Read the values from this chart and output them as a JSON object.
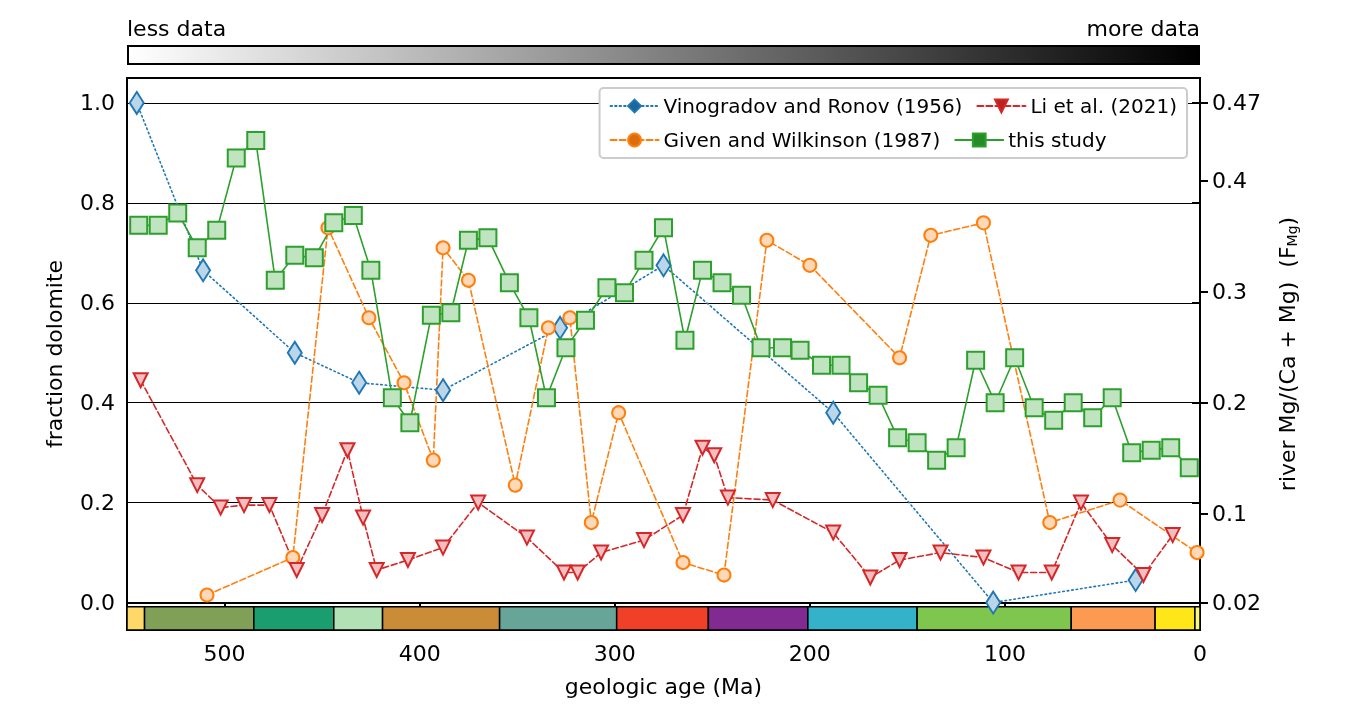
{
  "chart_data": {
    "type": "line",
    "xlabel": "geologic age (Ma)",
    "ylabel": "fraction dolomite",
    "y2label": "river Mg/(Ca + Mg)  (F$_{Mg}$)",
    "xlim": [
      550,
      0
    ],
    "xticks": [
      500,
      400,
      300,
      200,
      100,
      0
    ],
    "ylim": [
      -0.055,
      1.05
    ],
    "yticks": [
      {
        "value": 0,
        "label": "0.0"
      },
      0.2,
      0.4,
      0.6,
      0.8,
      {
        "value": 1,
        "label": "1.0"
      }
    ],
    "y2lim": [
      -0.005,
      0.4925
    ],
    "y2ticks": [
      0.02,
      0.1,
      0.2,
      0.3,
      0.4,
      0.47
    ],
    "clim": [
      0,
      1
    ],
    "cticks": [
      {
        "value": 0,
        "label": "less data"
      },
      {
        "value": 1,
        "label": "more data"
      }
    ],
    "grid": "y",
    "legend": "top right",
    "series": [
      {
        "name": "Vinogradov and Ronov (1956)",
        "color": "#1f77b4",
        "marker": "diamond",
        "line_style": "dotted",
        "x": [
          545,
          511,
          464,
          431,
          388,
          328,
          275,
          188,
          106,
          33
        ],
        "values": [
          1.0,
          0.665,
          0.5,
          0.44,
          0.425,
          0.55,
          0.675,
          0.38,
          0.0,
          0.045
        ]
      },
      {
        "name": "Given and Wilkinson (1987)",
        "color": "#ff7f0e",
        "marker": "circle",
        "line_style": "dashed",
        "x": [
          509,
          465,
          447,
          426,
          408,
          393,
          388,
          375,
          351,
          334,
          323,
          312,
          298,
          265,
          244,
          222,
          200,
          154,
          138,
          111,
          77,
          41,
          1.5
        ],
        "values": [
          0.015,
          0.09,
          0.75,
          0.57,
          0.44,
          0.285,
          0.71,
          0.645,
          0.235,
          0.55,
          0.57,
          0.16,
          0.38,
          0.08,
          0.055,
          0.725,
          0.675,
          0.49,
          0.735,
          0.76,
          0.16,
          0.205,
          0.1
        ]
      },
      {
        "name": "Li et al. (2021)",
        "color": "#d62728",
        "marker": "triangle",
        "line_style": "dashed",
        "x": [
          543,
          514,
          502,
          490,
          477,
          463,
          450,
          437,
          429,
          422,
          406,
          388,
          370,
          345,
          326,
          319,
          307,
          285,
          265,
          255,
          249,
          242,
          219,
          188,
          169,
          154,
          133,
          111,
          93,
          76,
          61,
          45,
          29,
          14
        ],
        "values": [
          0.445,
          0.235,
          0.19,
          0.195,
          0.195,
          0.065,
          0.175,
          0.305,
          0.17,
          0.065,
          0.085,
          0.11,
          0.2,
          0.13,
          0.06,
          0.06,
          0.1,
          0.125,
          0.175,
          0.31,
          0.295,
          0.21,
          0.205,
          0.14,
          0.05,
          0.085,
          0.1,
          0.09,
          0.06,
          0.06,
          0.2,
          0.115,
          0.055,
          0.135
        ]
      },
      {
        "name": "this study",
        "color": "#2ca02c",
        "marker": "square",
        "line_style": "solid",
        "x": [
          544,
          534,
          524,
          514,
          504,
          494,
          484,
          474,
          464,
          454,
          444,
          434,
          425,
          414,
          405,
          394,
          384,
          375,
          365,
          354,
          344,
          335,
          325,
          315,
          304,
          295,
          285,
          275,
          264,
          255,
          245,
          235,
          225,
          214,
          205,
          194,
          184,
          175,
          165,
          155,
          145,
          135,
          125,
          115,
          105,
          95,
          85,
          75,
          65,
          55,
          45,
          35,
          25,
          15,
          5.5
        ],
        "values": [
          0.755,
          0.755,
          0.78,
          0.71,
          0.745,
          0.89,
          0.925,
          0.645,
          0.695,
          0.69,
          0.76,
          0.775,
          0.665,
          0.41,
          0.36,
          0.575,
          0.58,
          0.725,
          0.73,
          0.64,
          0.57,
          0.41,
          0.51,
          0.565,
          0.63,
          0.62,
          0.685,
          0.75,
          0.525,
          0.665,
          0.64,
          0.615,
          0.51,
          0.51,
          0.505,
          0.475,
          0.475,
          0.44,
          0.415,
          0.33,
          0.32,
          0.285,
          0.31,
          0.485,
          0.4,
          0.49,
          0.39,
          0.365,
          0.4,
          0.37,
          0.41,
          0.3,
          0.305,
          0.31,
          0.27
        ]
      }
    ],
    "bands": [
      {
        "axis": "x",
        "from": 550,
        "to": 541,
        "color": "#fed96a"
      },
      {
        "axis": "x",
        "from": 541,
        "to": 485,
        "color": "#7fa056"
      },
      {
        "axis": "x",
        "from": 485,
        "to": 444,
        "color": "#1a9d6f"
      },
      {
        "axis": "x",
        "from": 444,
        "to": 419,
        "color": "#b3e1b6"
      },
      {
        "axis": "x",
        "from": 419,
        "to": 359,
        "color": "#cb8c37"
      },
      {
        "axis": "x",
        "from": 359,
        "to": 299,
        "color": "#67a599"
      },
      {
        "axis": "x",
        "from": 299,
        "to": 252,
        "color": "#f04028"
      },
      {
        "axis": "x",
        "from": 252,
        "to": 201,
        "color": "#812b92"
      },
      {
        "axis": "x",
        "from": 201,
        "to": 145,
        "color": "#34b2c9"
      },
      {
        "axis": "x",
        "from": 145,
        "to": 66,
        "color": "#7fc64e"
      },
      {
        "axis": "x",
        "from": 66,
        "to": 23,
        "color": "#fd9a52"
      },
      {
        "axis": "x",
        "from": 23,
        "to": 2.6,
        "color": "#ffe619"
      },
      {
        "axis": "x",
        "from": 2.6,
        "to": 0,
        "color": "#f9f97f"
      }
    ]
  }
}
